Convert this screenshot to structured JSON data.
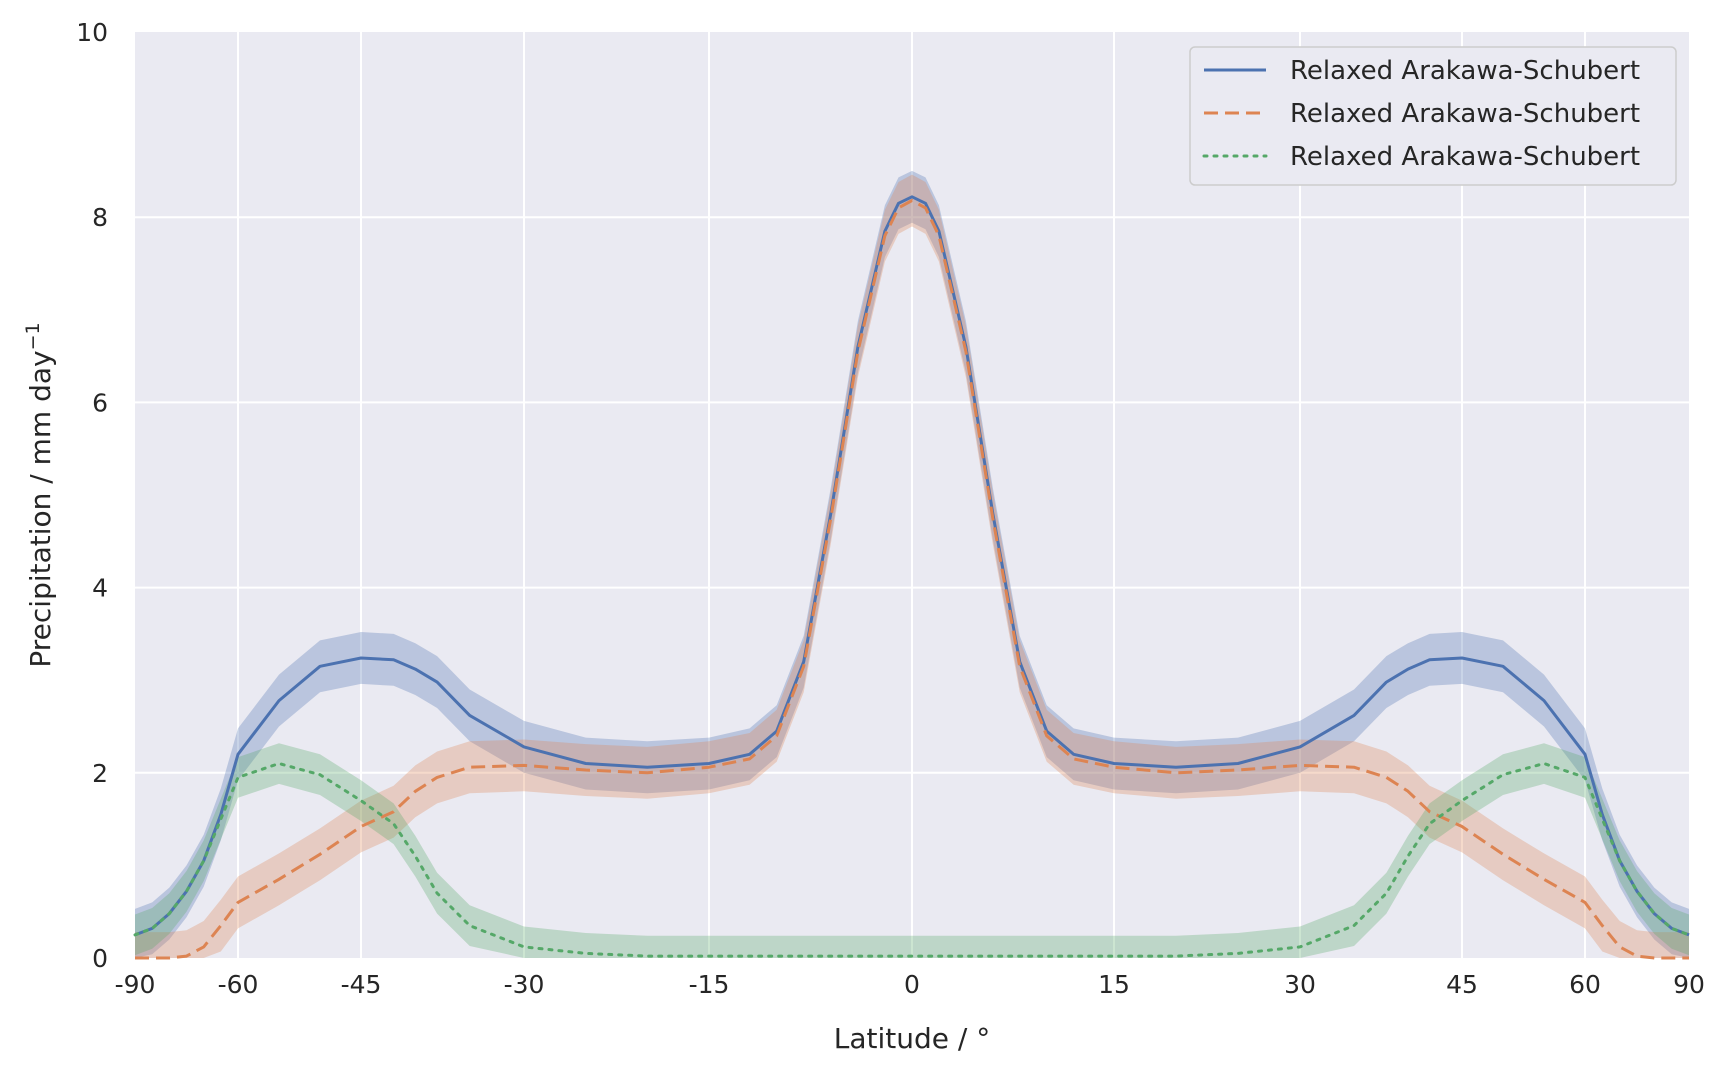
{
  "chart_data": {
    "type": "line",
    "title": "",
    "xlabel": "Latitude / °",
    "ylabel": "Precipitation / mm day",
    "ylabel_superscript": "−1",
    "xlim": [
      -90,
      90
    ],
    "ylim": [
      0,
      10
    ],
    "x_tick_labels": [
      "-90",
      "-60",
      "-45",
      "-30",
      "-15",
      "0",
      "15",
      "30",
      "45",
      "60",
      "90"
    ],
    "y_ticks": [
      0,
      2,
      4,
      6,
      8,
      10
    ],
    "grid": true,
    "legend_position": "upper-right",
    "x": [
      -90,
      -85,
      -80,
      -75,
      -70,
      -65,
      -60,
      -55,
      -50,
      -45,
      -42,
      -40,
      -38,
      -35,
      -30,
      -25,
      -20,
      -15,
      -12,
      -10,
      -8,
      -6,
      -4,
      -2,
      -1,
      0,
      1,
      2,
      4,
      6,
      8,
      10,
      12,
      15,
      20,
      25,
      30,
      35,
      38,
      40,
      42,
      45,
      50,
      55,
      60,
      65,
      70,
      75,
      80,
      85,
      90
    ],
    "series": [
      {
        "name": "Relaxed Arakawa-Schubert",
        "color": "#4c72b0",
        "style": "solid",
        "values": [
          0.25,
          0.32,
          0.48,
          0.72,
          1.05,
          1.55,
          2.2,
          2.78,
          3.15,
          3.24,
          3.22,
          3.12,
          2.98,
          2.62,
          2.28,
          2.1,
          2.06,
          2.1,
          2.2,
          2.45,
          3.2,
          4.8,
          6.6,
          7.85,
          8.15,
          8.22,
          8.15,
          7.85,
          6.6,
          4.8,
          3.2,
          2.45,
          2.2,
          2.1,
          2.06,
          2.1,
          2.28,
          2.62,
          2.98,
          3.12,
          3.22,
          3.24,
          3.15,
          2.78,
          2.2,
          1.55,
          1.05,
          0.72,
          0.48,
          0.32,
          0.25
        ],
        "band": 0.28
      },
      {
        "name": "Relaxed Arakawa-Schubert",
        "color": "#dd8452",
        "style": "dashed",
        "values": [
          0.0,
          0.0,
          0.0,
          0.02,
          0.12,
          0.35,
          0.6,
          0.85,
          1.12,
          1.42,
          1.58,
          1.8,
          1.95,
          2.06,
          2.08,
          2.03,
          2.0,
          2.06,
          2.15,
          2.4,
          3.15,
          4.75,
          6.55,
          7.8,
          8.1,
          8.18,
          8.1,
          7.8,
          6.55,
          4.75,
          3.15,
          2.4,
          2.15,
          2.06,
          2.0,
          2.03,
          2.08,
          2.06,
          1.95,
          1.8,
          1.58,
          1.42,
          1.12,
          0.85,
          0.6,
          0.35,
          0.12,
          0.02,
          0.0,
          0.0,
          0.0
        ],
        "band": 0.28
      },
      {
        "name": "Relaxed Arakawa-Schubert",
        "color": "#55a868",
        "style": "dotted",
        "values": [
          0.25,
          0.32,
          0.48,
          0.72,
          1.05,
          1.5,
          1.95,
          2.1,
          1.98,
          1.7,
          1.45,
          1.1,
          0.7,
          0.35,
          0.12,
          0.05,
          0.02,
          0.02,
          0.02,
          0.02,
          0.02,
          0.02,
          0.02,
          0.02,
          0.02,
          0.02,
          0.02,
          0.02,
          0.02,
          0.02,
          0.02,
          0.02,
          0.02,
          0.02,
          0.02,
          0.05,
          0.12,
          0.35,
          0.7,
          1.1,
          1.45,
          1.7,
          1.98,
          2.1,
          1.95,
          1.5,
          1.05,
          0.72,
          0.48,
          0.32,
          0.25
        ],
        "band": 0.22
      }
    ]
  }
}
